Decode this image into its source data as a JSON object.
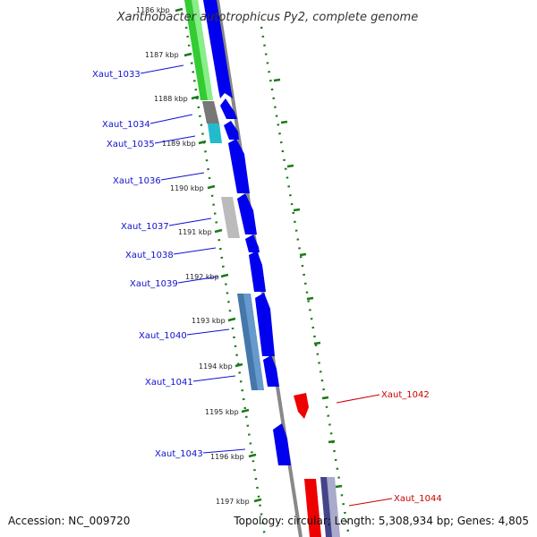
{
  "title": "Xanthobacter autotrophicus Py2, complete genome",
  "footer": {
    "accession": "Accession: NC_009720",
    "topology": "Topology: circular; Length: 5,308,934 bp; Genes: 4,805"
  },
  "colors": {
    "cds": "#0000ee",
    "cds_reverse": "#ee0000",
    "label_forward": "#1010d0",
    "label_reverse": "#cc0000",
    "tick": "#1a7a1a",
    "backbone": "#888888"
  },
  "kbp_ticks": [
    "1186 kbp",
    "1187 kbp",
    "1188 kbp",
    "1189 kbp",
    "1190 kbp",
    "1191 kbp",
    "1192 kbp",
    "1193 kbp",
    "1194 kbp",
    "1195 kbp",
    "1196 kbp",
    "1197 kbp"
  ],
  "gene_labels": [
    {
      "text": "Xaut_1033",
      "strand": "forward"
    },
    {
      "text": "Xaut_1034",
      "strand": "forward"
    },
    {
      "text": "Xaut_1035",
      "strand": "forward"
    },
    {
      "text": "Xaut_1036",
      "strand": "forward"
    },
    {
      "text": "Xaut_1037",
      "strand": "forward"
    },
    {
      "text": "Xaut_1038",
      "strand": "forward"
    },
    {
      "text": "Xaut_1039",
      "strand": "forward"
    },
    {
      "text": "Xaut_1040",
      "strand": "forward"
    },
    {
      "text": "Xaut_1041",
      "strand": "forward"
    },
    {
      "text": "Xaut_1042",
      "strand": "reverse"
    },
    {
      "text": "Xaut_1043",
      "strand": "forward"
    },
    {
      "text": "Xaut_1044",
      "strand": "reverse"
    }
  ]
}
